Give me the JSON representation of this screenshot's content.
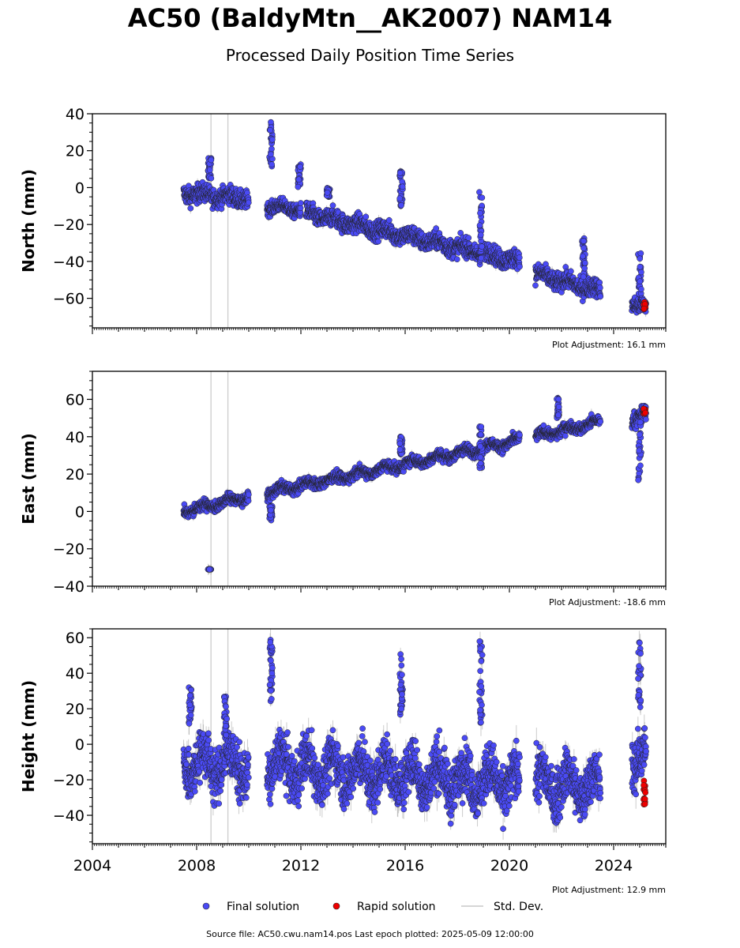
{
  "header": {
    "title": "AC50 (BaldyMtn__AK2007) NAM14",
    "subtitle": "Processed Daily Position Time Series"
  },
  "footer": {
    "text": "Source file: AC50.cwu.nam14.pos  Last epoch plotted: 2025-05-09 12:00:00"
  },
  "legend": {
    "final": "Final solution",
    "rapid": "Rapid solution",
    "std": "Std. Dev."
  },
  "colors": {
    "final": "#4a4af5",
    "rapid": "#ee0000",
    "std": "#bbbbbb",
    "marker_edge": "#222222"
  },
  "chart_data": [
    {
      "type": "scatter",
      "component": "north",
      "ylabel": "North (mm)",
      "adjustment": "Plot Adjustment: 16.1 mm",
      "xlim": [
        2004.0,
        2026.0
      ],
      "ylim": [
        -76,
        40
      ],
      "yticks": [
        -60,
        -40,
        -20,
        0,
        20,
        40
      ],
      "gap_lines": [
        2008.55,
        2009.2
      ],
      "trend_segments": [
        {
          "x": [
            2007.5,
            2010.0
          ],
          "y": [
            -3,
            -6
          ],
          "noise": 3.5
        },
        {
          "x": [
            2010.7,
            2012.0
          ],
          "y": [
            -10,
            -12
          ],
          "noise": 2.5
        },
        {
          "x": [
            2012.2,
            2020.4
          ],
          "y": [
            -14,
            -40
          ],
          "noise": 3.5
        },
        {
          "x": [
            2021.0,
            2023.5
          ],
          "y": [
            -47,
            -56
          ],
          "noise": 3.5
        },
        {
          "x": [
            2024.7,
            2025.25
          ],
          "y": [
            -62,
            -65
          ],
          "noise": 3.5
        }
      ],
      "spikes": [
        {
          "x": 2010.85,
          "y": [
            11,
            36
          ]
        },
        {
          "x": 2011.95,
          "y": [
            0,
            13
          ]
        },
        {
          "x": 2013.05,
          "y": [
            -5,
            0
          ]
        },
        {
          "x": 2015.85,
          "y": [
            -10,
            9
          ]
        },
        {
          "x": 2018.9,
          "y": [
            -40,
            -2
          ]
        },
        {
          "x": 2022.85,
          "y": [
            -50,
            -27
          ]
        },
        {
          "x": 2025.0,
          "y": [
            -60,
            -34
          ]
        },
        {
          "x": 2008.5,
          "y": [
            5,
            17
          ]
        }
      ],
      "rapid": {
        "x": [
          2025.15,
          2025.35
        ],
        "y": [
          -66,
          -62
        ]
      }
    },
    {
      "type": "scatter",
      "component": "east",
      "ylabel": "East (mm)",
      "adjustment": "Plot Adjustment: -18.6 mm",
      "xlim": [
        2004.0,
        2026.0
      ],
      "ylim": [
        -40,
        75
      ],
      "yticks": [
        -40,
        -20,
        0,
        20,
        40,
        60
      ],
      "gap_lines": [
        2008.55,
        2009.2
      ],
      "trend_segments": [
        {
          "x": [
            2007.5,
            2010.0
          ],
          "y": [
            0,
            8
          ],
          "noise": 2.0
        },
        {
          "x": [
            2010.7,
            2020.4
          ],
          "y": [
            10,
            38
          ],
          "noise": 2.0
        },
        {
          "x": [
            2021.0,
            2023.5
          ],
          "y": [
            40,
            48
          ],
          "noise": 2.0
        },
        {
          "x": [
            2024.7,
            2025.25
          ],
          "y": [
            50,
            52
          ],
          "noise": 3.0
        }
      ],
      "spikes": [
        {
          "x": 2008.5,
          "y": [
            -31,
            -31
          ]
        },
        {
          "x": 2010.85,
          "y": [
            -5,
            3
          ]
        },
        {
          "x": 2015.85,
          "y": [
            30,
            40
          ]
        },
        {
          "x": 2018.9,
          "y": [
            23,
            47
          ]
        },
        {
          "x": 2021.85,
          "y": [
            50,
            63
          ]
        },
        {
          "x": 2025.0,
          "y": [
            15,
            48
          ]
        }
      ],
      "rapid": {
        "x": [
          2025.15,
          2025.35
        ],
        "y": [
          52,
          55
        ]
      }
    },
    {
      "type": "scatter",
      "component": "height",
      "ylabel": "Height (mm)",
      "adjustment": "Plot Adjustment: 12.9 mm",
      "xlim": [
        2004.0,
        2026.0
      ],
      "ylim": [
        -56,
        65
      ],
      "yticks": [
        -40,
        -20,
        0,
        20,
        40,
        60
      ],
      "xticks": [
        2004,
        2008,
        2012,
        2016,
        2020,
        2024
      ],
      "gap_lines": [
        2008.55,
        2009.2
      ],
      "trend_segments": [
        {
          "x": [
            2007.5,
            2010.0
          ],
          "y": [
            -10,
            -12
          ],
          "noise": 10.0
        },
        {
          "x": [
            2010.7,
            2020.4
          ],
          "y": [
            -12,
            -22
          ],
          "noise": 10.0
        },
        {
          "x": [
            2021.0,
            2023.5
          ],
          "y": [
            -22,
            -24
          ],
          "noise": 10.0
        },
        {
          "x": [
            2024.7,
            2025.25
          ],
          "y": [
            -5,
            -10
          ],
          "noise": 10.0
        }
      ],
      "spikes": [
        {
          "x": 2007.75,
          "y": [
            10,
            32
          ]
        },
        {
          "x": 2009.1,
          "y": [
            5,
            27
          ]
        },
        {
          "x": 2010.85,
          "y": [
            24,
            59
          ]
        },
        {
          "x": 2015.85,
          "y": [
            16,
            54
          ]
        },
        {
          "x": 2018.9,
          "y": [
            10,
            59
          ]
        },
        {
          "x": 2025.0,
          "y": [
            20,
            62
          ]
        }
      ],
      "rapid": {
        "x": [
          2025.15,
          2025.35
        ],
        "y": [
          -34,
          -20
        ]
      }
    }
  ]
}
